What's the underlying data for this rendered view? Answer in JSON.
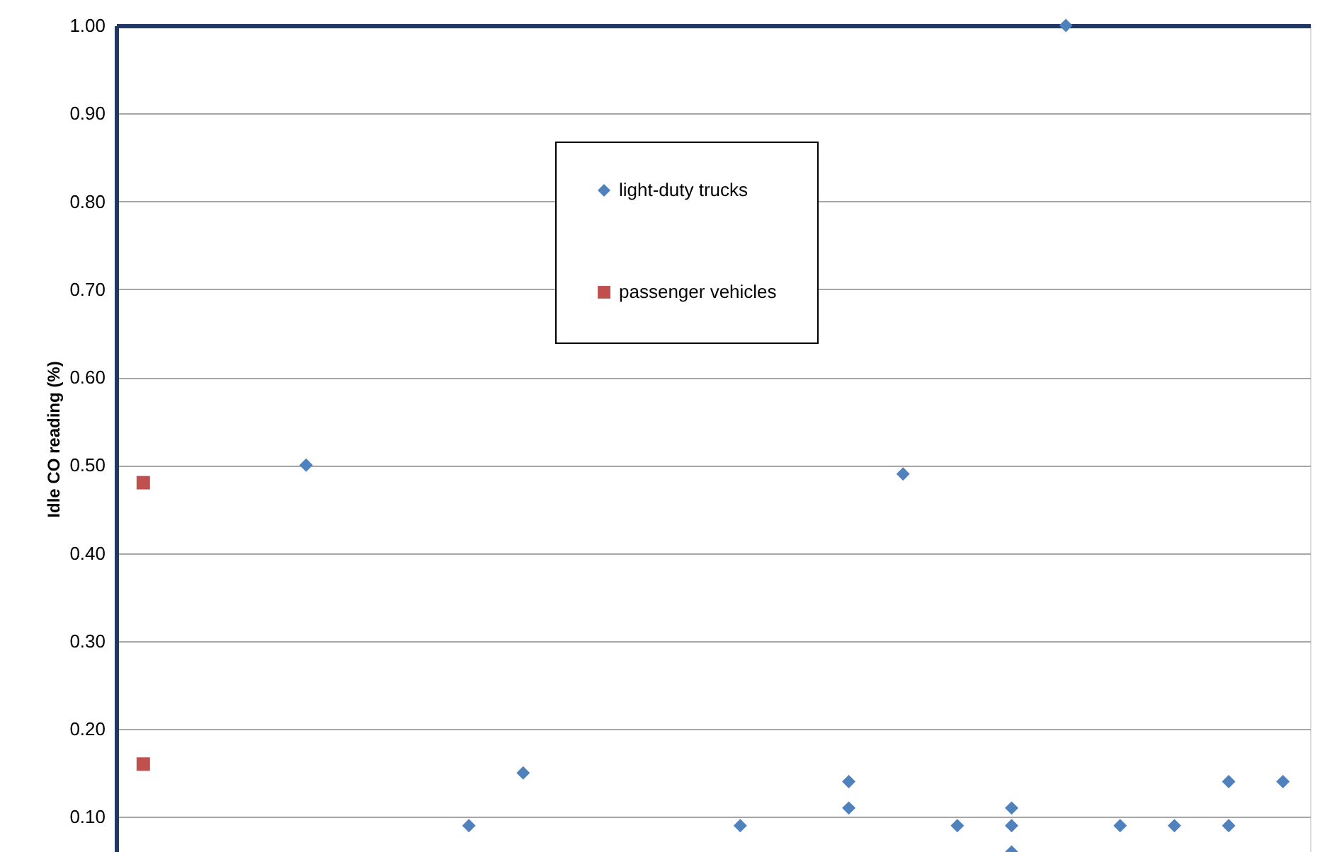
{
  "chart_data": {
    "type": "scatter",
    "ylabel": "Idle CO reading (%)",
    "categories": [
      null,
      null,
      null,
      null,
      null,
      null,
      null,
      null,
      null,
      null,
      null,
      null,
      null,
      null,
      null,
      null,
      null,
      null,
      null,
      null,
      null,
      null
    ],
    "series": [
      {
        "name": "light-duty trucks",
        "color": "#4f81bd",
        "marker": "diamond",
        "values": [
          null,
          null,
          null,
          0.5,
          null,
          null,
          0.09,
          0.15,
          null,
          null,
          null,
          0.09,
          null,
          0.14,
          0.49,
          0.09,
          0.11,
          1.0,
          0.09,
          0.09,
          0.14,
          0.14
        ]
      },
      {
        "name": "passenger vehicles",
        "color": "#c0504d",
        "marker": "square",
        "values": [
          0.48,
          null,
          null,
          null,
          null,
          null,
          null,
          null,
          null,
          null,
          null,
          null,
          null,
          null,
          null,
          null,
          null,
          null,
          null,
          null,
          null,
          null
        ]
      },
      {
        "color": "#4f81bd",
        "marker": "diamond",
        "values": [
          null,
          null,
          null,
          null,
          null,
          null,
          null,
          null,
          null,
          null,
          null,
          null,
          null,
          0.11,
          null,
          null,
          0.09,
          null,
          null,
          null,
          0.09,
          null
        ]
      },
      {
        "color": "#4f81bd",
        "marker": "diamond",
        "values": [
          null,
          null,
          null,
          null,
          null,
          null,
          null,
          null,
          null,
          null,
          null,
          null,
          null,
          null,
          null,
          null,
          0.06,
          null,
          null,
          null,
          null,
          null
        ]
      },
      {
        "color": "#c0504d",
        "marker": "square",
        "values": [
          0.16,
          null,
          null,
          null,
          null,
          null,
          null,
          null,
          null,
          null,
          null,
          null,
          null,
          null,
          null,
          null,
          null,
          null,
          null,
          null,
          null,
          null
        ]
      }
    ],
    "ylim": [
      0.06,
      1.0
    ],
    "yticks": [
      {
        "value": 0.1,
        "label": "0.10"
      },
      {
        "value": 0.2,
        "label": "0.20"
      },
      {
        "value": 0.3,
        "label": "0.30"
      },
      {
        "value": 0.4,
        "label": "0.40"
      },
      {
        "value": 0.5,
        "label": "0.50"
      },
      {
        "value": 0.6,
        "label": "0.60"
      },
      {
        "value": 0.7,
        "label": "0.70"
      },
      {
        "value": 0.8,
        "label": "0.80"
      },
      {
        "value": 0.9,
        "label": "0.90"
      },
      {
        "value": 1,
        "label": "1.00"
      }
    ],
    "grid": "y",
    "legend": "top",
    "tick_labels": "y"
  }
}
